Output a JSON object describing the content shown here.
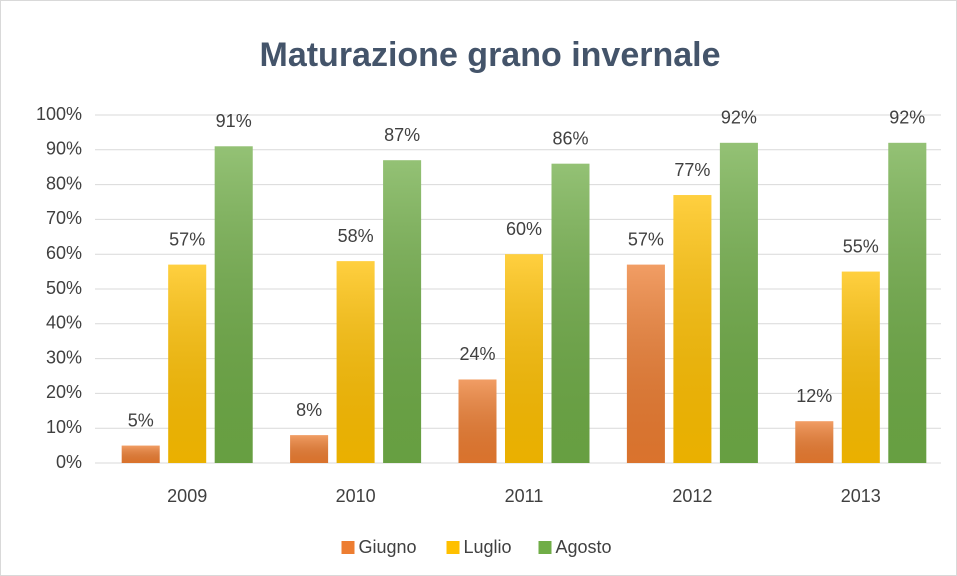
{
  "chart_data": {
    "type": "bar",
    "title": "Maturazione grano invernale",
    "categories": [
      "2009",
      "2010",
      "2011",
      "2012",
      "2013"
    ],
    "series": [
      {
        "name": "Giugno",
        "color": "#ed7d31",
        "values": [
          5,
          8,
          24,
          57,
          12
        ],
        "value_labels": [
          "5%",
          "8%",
          "24%",
          "57%",
          "12%"
        ]
      },
      {
        "name": "Luglio",
        "color": "#ffc000",
        "values": [
          57,
          58,
          60,
          77,
          55
        ],
        "value_labels": [
          "57%",
          "58%",
          "60%",
          "77%",
          "55%"
        ]
      },
      {
        "name": "Agosto",
        "color": "#70ad47",
        "values": [
          91,
          87,
          86,
          92,
          92
        ],
        "value_labels": [
          "91%",
          "87%",
          "86%",
          "92%",
          "92%"
        ]
      }
    ],
    "ylim": [
      0,
      100
    ],
    "yticks": [
      {
        "value": 0,
        "label": "0%"
      },
      {
        "value": 10,
        "label": "10%"
      },
      {
        "value": 20,
        "label": "20%"
      },
      {
        "value": 30,
        "label": "30%"
      },
      {
        "value": 40,
        "label": "40%"
      },
      {
        "value": 50,
        "label": "50%"
      },
      {
        "value": 60,
        "label": "60%"
      },
      {
        "value": 70,
        "label": "70%"
      },
      {
        "value": 80,
        "label": "80%"
      },
      {
        "value": 90,
        "label": "90%"
      },
      {
        "value": 100,
        "label": "100%"
      }
    ],
    "grid": true,
    "legend": "bottom"
  }
}
